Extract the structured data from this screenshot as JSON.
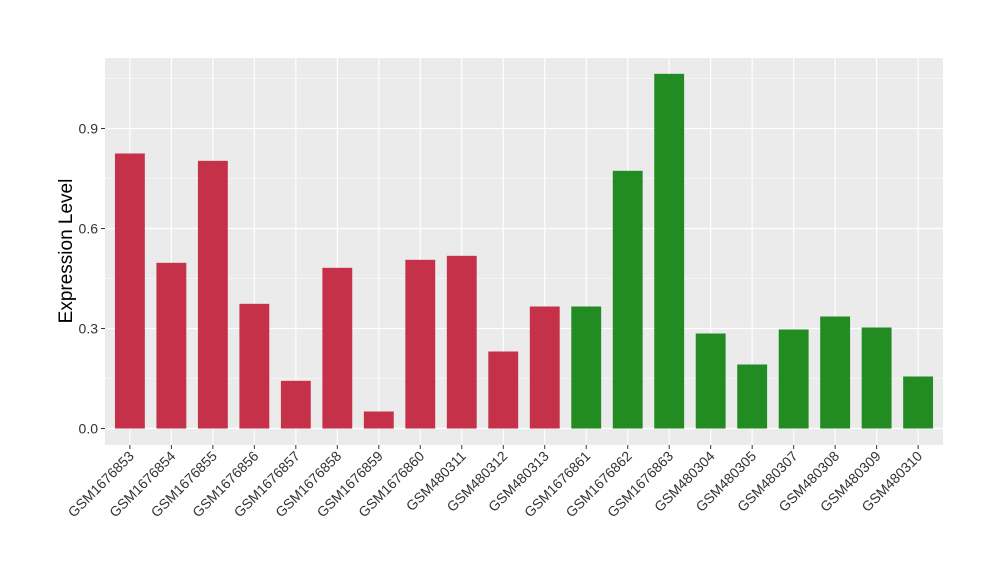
{
  "chart_data": {
    "type": "bar",
    "title": "",
    "xlabel": "",
    "ylabel": "Expression Level",
    "ylim": [
      -0.05,
      1.11
    ],
    "yticks": [
      "0.0",
      "0.3",
      "0.6",
      "0.9"
    ],
    "ytick_values": [
      0.0,
      0.3,
      0.6,
      0.9
    ],
    "grid": true,
    "legend": "none",
    "categories": [
      "GSM1676853",
      "GSM1676854",
      "GSM1676855",
      "GSM1676856",
      "GSM1676857",
      "GSM1676858",
      "GSM1676859",
      "GSM1676860",
      "GSM480311",
      "GSM480312",
      "GSM480313",
      "GSM1676861",
      "GSM1676862",
      "GSM1676863",
      "GSM480304",
      "GSM480305",
      "GSM480307",
      "GSM480308",
      "GSM480309",
      "GSM480310"
    ],
    "values": [
      0.825,
      0.497,
      0.803,
      0.374,
      0.143,
      0.482,
      0.051,
      0.506,
      0.518,
      0.231,
      0.366,
      0.366,
      0.773,
      1.064,
      0.285,
      0.192,
      0.297,
      0.336,
      0.303,
      0.156
    ],
    "groups": [
      "red",
      "red",
      "red",
      "red",
      "red",
      "red",
      "red",
      "red",
      "red",
      "red",
      "red",
      "green",
      "green",
      "green",
      "green",
      "green",
      "green",
      "green",
      "green",
      "green"
    ],
    "colors": {
      "red": "#C43149",
      "green": "#228B22",
      "panel": "#EBEBEB",
      "grid": "#FFFFFF"
    }
  }
}
